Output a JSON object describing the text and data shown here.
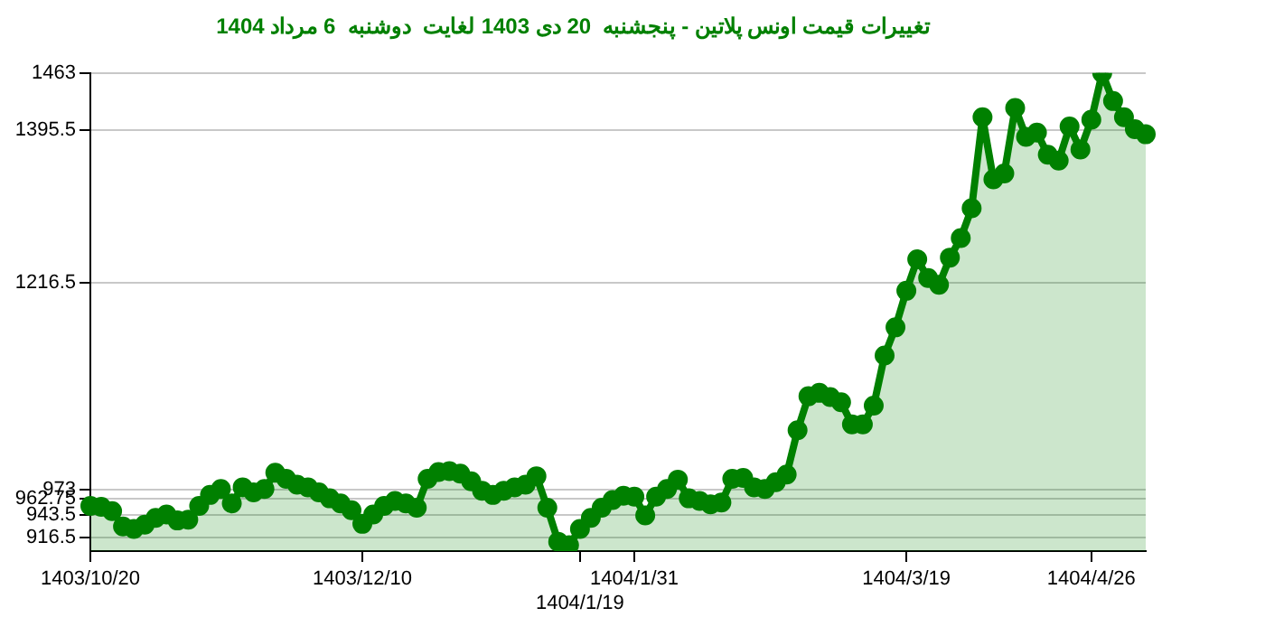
{
  "chart_data": {
    "type": "area",
    "title": "تغییرات قیمت اونس پلاتین - پنجشنبه  20 دی 1403 لغایت  دوشنبه  6 مرداد 1404",
    "categories": [
      "1403/10/20",
      null,
      null,
      null,
      null,
      null,
      null,
      null,
      null,
      null,
      null,
      null,
      null,
      null,
      null,
      null,
      null,
      null,
      null,
      null,
      null,
      null,
      null,
      null,
      null,
      "1403/12/10",
      null,
      null,
      null,
      null,
      null,
      null,
      null,
      null,
      null,
      null,
      null,
      null,
      null,
      null,
      null,
      null,
      null,
      null,
      null,
      "1404/1/19",
      null,
      null,
      null,
      null,
      "1404/1/31",
      null,
      null,
      null,
      null,
      null,
      null,
      null,
      null,
      null,
      null,
      null,
      null,
      null,
      null,
      null,
      null,
      null,
      null,
      null,
      null,
      null,
      null,
      null,
      null,
      "1404/3/19",
      null,
      null,
      null,
      null,
      null,
      null,
      null,
      null,
      null,
      null,
      null,
      null,
      null,
      null,
      null,
      null,
      "1404/4/26",
      null,
      null,
      null,
      null,
      null
    ],
    "series": [
      {
        "color": "#008000",
        "values": [
          954,
          953,
          948,
          930,
          927,
          932,
          940,
          944,
          937,
          938,
          954,
          967,
          974,
          957,
          976,
          970,
          974,
          993,
          986,
          979,
          976,
          970,
          963,
          957,
          949,
          933,
          944,
          954,
          960,
          957,
          952,
          986,
          994,
          995,
          992,
          983,
          972,
          967,
          972,
          976,
          979,
          989,
          952,
          912,
          908,
          927,
          940,
          952,
          961,
          966,
          965,
          943,
          965,
          974,
          985,
          963,
          960,
          956,
          958,
          986,
          987,
          976,
          974,
          982,
          991,
          1043,
          1083,
          1087,
          1082,
          1076,
          1050,
          1050,
          1072,
          1131,
          1164,
          1207,
          1244,
          1222,
          1214,
          1246,
          1269,
          1304,
          1411,
          1338,
          1345,
          1422,
          1388,
          1393,
          1367,
          1360,
          1400,
          1373,
          1408,
          1463,
          1430,
          1411,
          1397,
          1391
        ]
      }
    ],
    "ylim": [
      901,
      1463
    ],
    "yticks": [
      916.5,
      943.5,
      962.75,
      973,
      1216.5,
      1395.5,
      1463
    ],
    "grid": "y",
    "legend": false,
    "marker": "circle"
  }
}
